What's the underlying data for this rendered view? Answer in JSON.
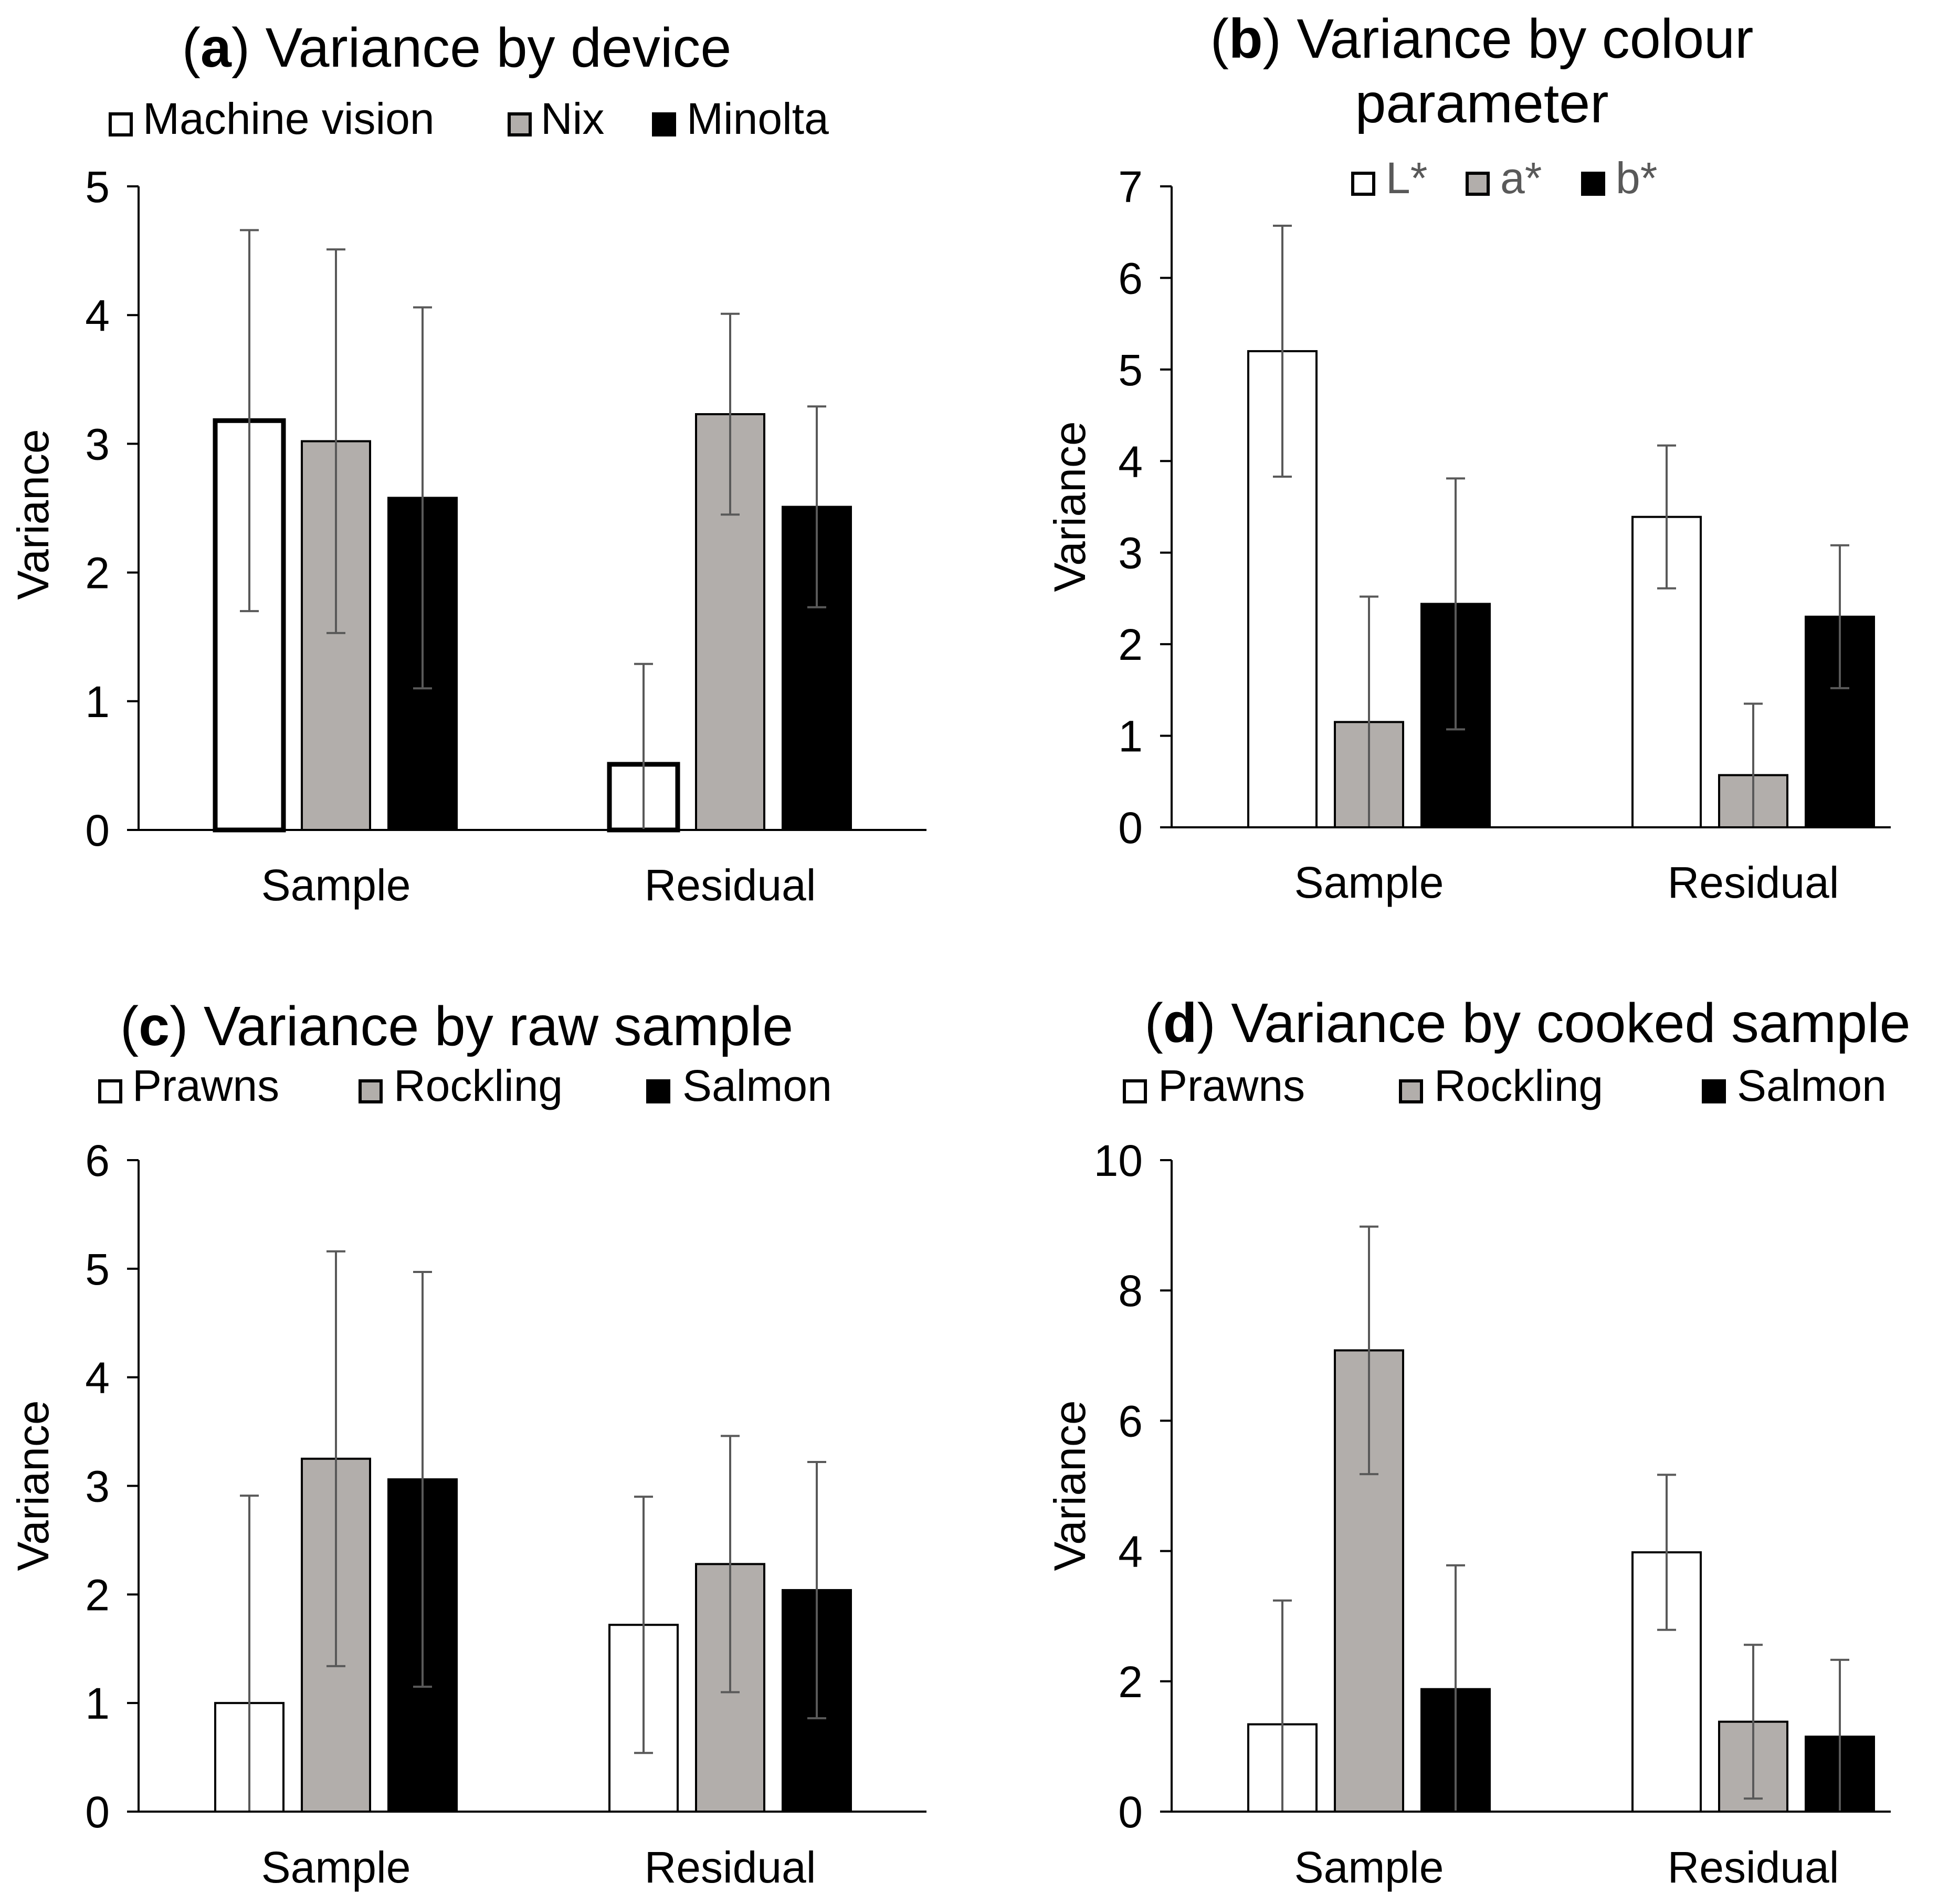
{
  "colors": {
    "white": "#ffffff",
    "grey": "#b2aeab",
    "black": "#000000",
    "axis": "#000000",
    "error_bar": "#595959",
    "legend_text_b": "#595959"
  },
  "chart_data": [
    {
      "id": "a",
      "panel_letter": "a",
      "type": "bar",
      "title_text": ") Variance by device",
      "title_lines": [],
      "ylabel": "Variance",
      "ylim": [
        0,
        5
      ],
      "yticks": [
        0,
        1,
        2,
        3,
        4,
        5
      ],
      "categories": [
        "Sample",
        "Residual"
      ],
      "legend": {
        "labels": [
          "Machine vision",
          "Nix",
          "Minolta"
        ],
        "placement": "top"
      },
      "series": [
        {
          "name": "Machine vision",
          "color": "white",
          "thick_border": true,
          "values": [
            3.18,
            0.51
          ],
          "errors": [
            1.48,
            0.78
          ]
        },
        {
          "name": "Nix",
          "color": "grey",
          "values": [
            3.02,
            3.23
          ],
          "errors": [
            1.49,
            0.78
          ]
        },
        {
          "name": "Minolta",
          "color": "black",
          "values": [
            2.58,
            2.51
          ],
          "errors": [
            1.48,
            0.78
          ]
        }
      ]
    },
    {
      "id": "b",
      "panel_letter": "b",
      "type": "bar",
      "title_text": ") Variance by colour",
      "title_lines": [
        "parameter"
      ],
      "ylabel": "Variance",
      "ylim": [
        0,
        7
      ],
      "yticks": [
        0,
        1,
        2,
        3,
        4,
        5,
        6,
        7
      ],
      "categories": [
        "Sample",
        "Residual"
      ],
      "legend": {
        "labels": [
          "L*",
          "a*",
          "b*"
        ],
        "placement": "top-inside",
        "text_color": "legend_text_b"
      },
      "series": [
        {
          "name": "L*",
          "color": "white",
          "values": [
            5.2,
            3.39
          ],
          "errors": [
            1.37,
            0.78
          ]
        },
        {
          "name": "a*",
          "color": "grey",
          "values": [
            1.15,
            0.57
          ],
          "errors": [
            1.37,
            0.78
          ]
        },
        {
          "name": "b*",
          "color": "black",
          "values": [
            2.44,
            2.3
          ],
          "errors": [
            1.37,
            0.78
          ]
        }
      ]
    },
    {
      "id": "c",
      "panel_letter": "c",
      "type": "bar",
      "title_text": ") Variance by raw sample",
      "title_lines": [],
      "ylabel": "Variance",
      "ylim": [
        0,
        6
      ],
      "yticks": [
        0,
        1,
        2,
        3,
        4,
        5,
        6
      ],
      "categories": [
        "Sample",
        "Residual"
      ],
      "legend": {
        "labels": [
          "Prawns",
          "Rockling",
          "Salmon"
        ],
        "placement": "top"
      },
      "series": [
        {
          "name": "Prawns",
          "color": "white",
          "values": [
            1.0,
            1.72
          ],
          "errors": [
            1.91,
            1.18
          ]
        },
        {
          "name": "Rockling",
          "color": "grey",
          "values": [
            3.25,
            2.28
          ],
          "errors": [
            1.91,
            1.18
          ]
        },
        {
          "name": "Salmon",
          "color": "black",
          "values": [
            3.06,
            2.04
          ],
          "errors": [
            1.91,
            1.18
          ]
        }
      ]
    },
    {
      "id": "d",
      "panel_letter": "d",
      "type": "bar",
      "title_text": ") Variance by cooked sample",
      "title_lines": [],
      "ylabel": "Variance",
      "ylim": [
        0,
        10
      ],
      "yticks": [
        0,
        2,
        4,
        6,
        8,
        10
      ],
      "categories": [
        "Sample",
        "Residual"
      ],
      "legend": {
        "labels": [
          "Prawns",
          "Rockling",
          "Salmon"
        ],
        "placement": "top"
      },
      "series": [
        {
          "name": "Prawns",
          "color": "white",
          "values": [
            1.34,
            3.98
          ],
          "errors": [
            1.9,
            1.19
          ]
        },
        {
          "name": "Rockling",
          "color": "grey",
          "values": [
            7.08,
            1.38
          ],
          "errors": [
            1.9,
            1.18
          ]
        },
        {
          "name": "Salmon",
          "color": "black",
          "values": [
            1.88,
            1.15
          ],
          "errors": [
            1.9,
            1.18
          ]
        }
      ]
    }
  ]
}
